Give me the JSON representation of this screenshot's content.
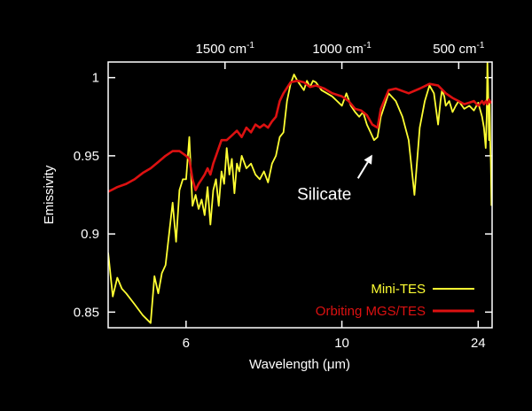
{
  "colors": {
    "background": "#000000",
    "axes": "#ffffff",
    "mini_tes": "#ffff33",
    "mgs_tes": "#dd1111"
  },
  "chart_data": {
    "type": "line",
    "xlabel": "Wavelength (μm)",
    "ylabel": "Emissivity",
    "x_scale": "reciprocal (wavenumber-linear)",
    "xlim_um": [
      5.0,
      28.0
    ],
    "ylim": [
      0.84,
      1.01
    ],
    "bottom_ticks": [
      {
        "value": 6,
        "label": "6"
      },
      {
        "value": 10,
        "label": "10"
      },
      {
        "value": 24,
        "label": "24"
      }
    ],
    "top_ticks": [
      {
        "value": 1500,
        "label": "1500 cm",
        "exp": "-1"
      },
      {
        "value": 1000,
        "label": "1000 cm",
        "exp": "-1"
      },
      {
        "value": 500,
        "label": "500 cm",
        "exp": "-1"
      }
    ],
    "y_ticks": [
      {
        "value": 0.85,
        "label": "0.85"
      },
      {
        "value": 0.9,
        "label": "0.9"
      },
      {
        "value": 0.95,
        "label": "0.95"
      },
      {
        "value": 1.0,
        "label": "1"
      }
    ],
    "annotation": {
      "text": "Silicate",
      "x": 11.4,
      "y": 0.953,
      "text_x": 9.3,
      "text_y": 0.922
    },
    "legend": {
      "position": "bottom-right"
    },
    "series": [
      {
        "name": "Mini-TES",
        "color": "#ffff33",
        "x": [
          5.0,
          5.05,
          5.1,
          5.15,
          5.2,
          5.3,
          5.4,
          5.5,
          5.55,
          5.6,
          5.65,
          5.7,
          5.8,
          5.85,
          5.9,
          5.95,
          6.0,
          6.05,
          6.1,
          6.15,
          6.2,
          6.25,
          6.3,
          6.35,
          6.4,
          6.45,
          6.5,
          6.55,
          6.6,
          6.65,
          6.7,
          6.75,
          6.8,
          6.85,
          6.9,
          6.95,
          7.0,
          7.1,
          7.2,
          7.3,
          7.4,
          7.5,
          7.6,
          7.7,
          7.8,
          7.9,
          8.0,
          8.1,
          8.2,
          8.3,
          8.4,
          8.5,
          8.6,
          8.7,
          8.8,
          8.9,
          9.0,
          9.2,
          9.4,
          9.6,
          9.8,
          10.0,
          10.2,
          10.4,
          10.6,
          10.8,
          11.0,
          11.2,
          11.4,
          11.6,
          11.8,
          12.0,
          12.5,
          13.0,
          13.5,
          14.0,
          14.5,
          15.0,
          15.5,
          16.0,
          16.5,
          17.0,
          17.3,
          17.5,
          17.8,
          18.0,
          18.5,
          19.0,
          19.5,
          20.0,
          21.0,
          22.0,
          23.0,
          24.0,
          25.0,
          25.5,
          26.0,
          26.3,
          26.5,
          26.7,
          27.0,
          27.2,
          27.4,
          27.6,
          27.8
        ],
        "y": [
          0.888,
          0.86,
          0.872,
          0.865,
          0.862,
          0.855,
          0.848,
          0.843,
          0.873,
          0.862,
          0.875,
          0.88,
          0.92,
          0.895,
          0.928,
          0.935,
          0.935,
          0.962,
          0.918,
          0.925,
          0.916,
          0.922,
          0.912,
          0.93,
          0.906,
          0.928,
          0.935,
          0.918,
          0.94,
          0.932,
          0.955,
          0.938,
          0.948,
          0.926,
          0.945,
          0.94,
          0.95,
          0.942,
          0.945,
          0.938,
          0.935,
          0.94,
          0.933,
          0.945,
          0.95,
          0.962,
          0.965,
          0.985,
          0.996,
          1.002,
          0.998,
          0.995,
          0.992,
          0.998,
          0.994,
          0.998,
          0.997,
          0.992,
          0.99,
          0.988,
          0.985,
          0.982,
          0.99,
          0.982,
          0.978,
          0.975,
          0.978,
          0.97,
          0.965,
          0.96,
          0.962,
          0.975,
          0.99,
          0.985,
          0.975,
          0.96,
          0.925,
          0.968,
          0.985,
          0.995,
          0.99,
          0.97,
          0.985,
          0.992,
          0.988,
          0.982,
          0.985,
          0.978,
          0.982,
          0.985,
          0.98,
          0.982,
          0.979,
          0.984,
          0.975,
          0.968,
          0.955,
          0.975,
          1.01,
          0.995,
          0.96,
          0.985,
          0.96,
          0.945,
          0.918
        ]
      },
      {
        "name": "Orbiting MGS/TES",
        "color": "#dd1111",
        "x": [
          5.0,
          5.1,
          5.2,
          5.3,
          5.4,
          5.5,
          5.6,
          5.7,
          5.8,
          5.9,
          6.0,
          6.05,
          6.1,
          6.15,
          6.2,
          6.25,
          6.3,
          6.35,
          6.4,
          6.45,
          6.5,
          6.55,
          6.6,
          6.7,
          6.8,
          6.9,
          7.0,
          7.1,
          7.2,
          7.3,
          7.4,
          7.5,
          7.6,
          7.7,
          7.8,
          7.9,
          8.0,
          8.2,
          8.4,
          8.6,
          8.8,
          9.0,
          9.3,
          9.6,
          10.0,
          10.3,
          10.6,
          10.9,
          11.2,
          11.5,
          11.8,
          12.0,
          12.5,
          13.0,
          14.0,
          15.0,
          16.0,
          17.0,
          18.0,
          19.0,
          20.0,
          21.0,
          22.0,
          23.0,
          24.0,
          25.0,
          25.5,
          26.0,
          26.5,
          27.0,
          27.5,
          27.8
        ],
        "y": [
          0.927,
          0.93,
          0.932,
          0.935,
          0.939,
          0.942,
          0.946,
          0.95,
          0.953,
          0.953,
          0.95,
          0.948,
          0.935,
          0.928,
          0.932,
          0.935,
          0.938,
          0.942,
          0.938,
          0.945,
          0.95,
          0.955,
          0.96,
          0.96,
          0.963,
          0.966,
          0.962,
          0.968,
          0.965,
          0.97,
          0.968,
          0.97,
          0.968,
          0.972,
          0.975,
          0.985,
          0.99,
          0.997,
          0.998,
          0.997,
          0.994,
          0.995,
          0.993,
          0.99,
          0.988,
          0.985,
          0.98,
          0.979,
          0.976,
          0.97,
          0.968,
          0.98,
          0.992,
          0.993,
          0.99,
          0.993,
          0.996,
          0.995,
          0.99,
          0.987,
          0.985,
          0.983,
          0.984,
          0.985,
          0.982,
          0.985,
          0.983,
          0.985,
          0.983,
          0.986,
          0.984,
          0.985
        ]
      }
    ]
  }
}
